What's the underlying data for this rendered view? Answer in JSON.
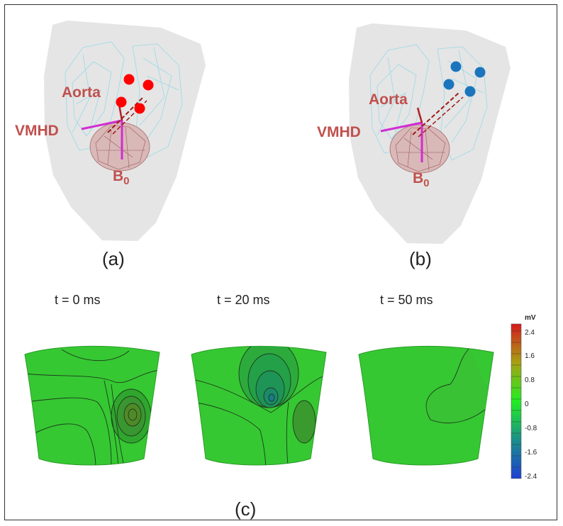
{
  "panels": {
    "a": {
      "label": "(a)",
      "annotations": {
        "aorta": "Aorta",
        "vmhd": "VMHD",
        "b0_base": "B",
        "b0_sub": "0"
      },
      "electrode_color": "#ff0000"
    },
    "b": {
      "label": "(b)",
      "annotations": {
        "aorta": "Aorta",
        "vmhd": "VMHD",
        "b0_base": "B",
        "b0_sub": "0"
      },
      "electrode_color": "#1b75bc"
    },
    "c": {
      "label": "(c)",
      "maps": [
        {
          "time": "t = 0 ms"
        },
        {
          "time": "t = 20 ms"
        },
        {
          "time": "t = 50 ms"
        }
      ]
    }
  },
  "colorbar": {
    "unit": "mV",
    "ticks": [
      "2.4",
      "1.6",
      "0.8",
      "0",
      "-0.8",
      "-1.6",
      "-2.4"
    ],
    "colors": [
      "#d7191c",
      "#a6a112",
      "#22ee22",
      "#1a8f8a",
      "#1e3fd4"
    ]
  }
}
